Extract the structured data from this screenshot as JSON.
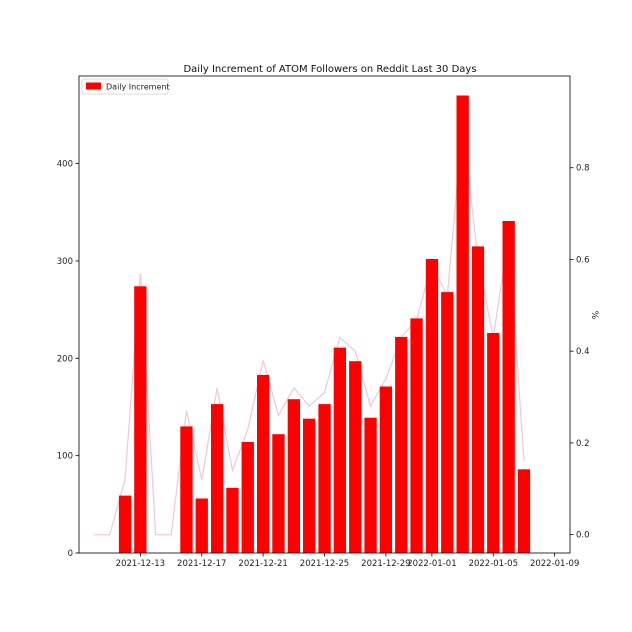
{
  "chart_data": {
    "type": "bar",
    "title": "Daily Increment of ATOM Followers on Reddit Last 30 Days",
    "legend": {
      "entries": [
        "Daily Increment"
      ],
      "placement": "top-left"
    },
    "bar_color": "#ff0000",
    "line_color": "#f4c6d6",
    "x_axis": {
      "type": "date",
      "range": [
        "2021-12-09",
        "2022-01-10"
      ],
      "ticks": [
        "2021-12-13",
        "2021-12-17",
        "2021-12-21",
        "2021-12-25",
        "2021-12-29",
        "2022-01-01",
        "2022-01-05",
        "2022-01-09"
      ]
    },
    "y_left": {
      "range": [
        0,
        490
      ],
      "ticks": [
        "0",
        "100",
        "200",
        "300",
        "400"
      ]
    },
    "y_right": {
      "label": "%",
      "range": [
        -0.04,
        1.0
      ],
      "ticks": [
        "0.0",
        "0.2",
        "0.4",
        "0.6",
        "0.8"
      ]
    },
    "series": [
      {
        "name": "Daily Increment",
        "kind": "bar",
        "points": [
          {
            "x": "2021-12-12",
            "y": 59
          },
          {
            "x": "2021-12-13",
            "y": 274
          },
          {
            "x": "2021-12-16",
            "y": 130
          },
          {
            "x": "2021-12-17",
            "y": 56
          },
          {
            "x": "2021-12-18",
            "y": 153
          },
          {
            "x": "2021-12-19",
            "y": 67
          },
          {
            "x": "2021-12-20",
            "y": 114
          },
          {
            "x": "2021-12-21",
            "y": 183
          },
          {
            "x": "2021-12-22",
            "y": 122
          },
          {
            "x": "2021-12-23",
            "y": 158
          },
          {
            "x": "2021-12-24",
            "y": 138
          },
          {
            "x": "2021-12-25",
            "y": 153
          },
          {
            "x": "2021-12-26",
            "y": 211
          },
          {
            "x": "2021-12-27",
            "y": 197
          },
          {
            "x": "2021-12-28",
            "y": 139
          },
          {
            "x": "2021-12-29",
            "y": 171
          },
          {
            "x": "2021-12-30",
            "y": 222
          },
          {
            "x": "2021-12-31",
            "y": 241
          },
          {
            "x": "2022-01-01",
            "y": 302
          },
          {
            "x": "2022-01-02",
            "y": 268
          },
          {
            "x": "2022-01-03",
            "y": 470
          },
          {
            "x": "2022-01-04",
            "y": 315
          },
          {
            "x": "2022-01-05",
            "y": 226
          },
          {
            "x": "2022-01-06",
            "y": 341
          },
          {
            "x": "2022-01-07",
            "y": 86
          }
        ]
      },
      {
        "kind": "line",
        "axis": "right",
        "points": [
          {
            "x": "2021-12-10",
            "y": 0.0
          },
          {
            "x": "2021-12-11",
            "y": 0.0
          },
          {
            "x": "2021-12-12",
            "y": 0.12
          },
          {
            "x": "2021-12-13",
            "y": 0.57
          },
          {
            "x": "2021-12-14",
            "y": 0.0
          },
          {
            "x": "2021-12-15",
            "y": 0.0
          },
          {
            "x": "2021-12-16",
            "y": 0.27
          },
          {
            "x": "2021-12-17",
            "y": 0.12
          },
          {
            "x": "2021-12-18",
            "y": 0.32
          },
          {
            "x": "2021-12-19",
            "y": 0.14
          },
          {
            "x": "2021-12-20",
            "y": 0.23
          },
          {
            "x": "2021-12-21",
            "y": 0.38
          },
          {
            "x": "2021-12-22",
            "y": 0.26
          },
          {
            "x": "2021-12-23",
            "y": 0.32
          },
          {
            "x": "2021-12-24",
            "y": 0.28
          },
          {
            "x": "2021-12-25",
            "y": 0.31
          },
          {
            "x": "2021-12-26",
            "y": 0.43
          },
          {
            "x": "2021-12-27",
            "y": 0.4
          },
          {
            "x": "2021-12-28",
            "y": 0.28
          },
          {
            "x": "2021-12-29",
            "y": 0.34
          },
          {
            "x": "2021-12-30",
            "y": 0.43
          },
          {
            "x": "2021-12-31",
            "y": 0.47
          },
          {
            "x": "2022-01-01",
            "y": 0.59
          },
          {
            "x": "2022-01-02",
            "y": 0.52
          },
          {
            "x": "2022-01-03",
            "y": 0.9
          },
          {
            "x": "2022-01-04",
            "y": 0.6
          },
          {
            "x": "2022-01-05",
            "y": 0.43
          },
          {
            "x": "2022-01-06",
            "y": 0.65
          },
          {
            "x": "2022-01-07",
            "y": 0.16
          }
        ]
      }
    ]
  }
}
